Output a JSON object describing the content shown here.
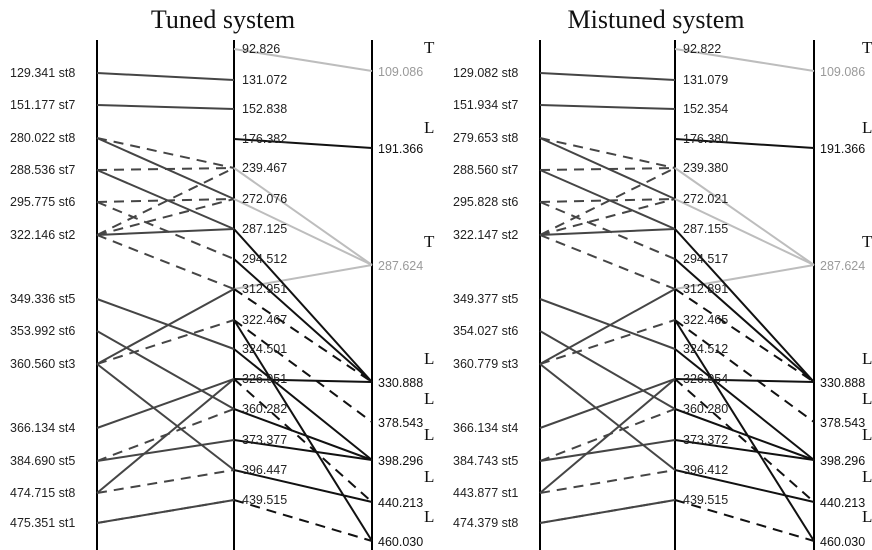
{
  "panels": [
    {
      "title": "Tuned system",
      "left": [
        {
          "value": "129.341",
          "id": "st8"
        },
        {
          "value": "151.177",
          "id": "st7"
        },
        {
          "value": "280.022",
          "id": "st8"
        },
        {
          "value": "288.536",
          "id": "st7"
        },
        {
          "value": "295.775",
          "id": "st6"
        },
        {
          "value": "322.146",
          "id": "st2"
        },
        {
          "value": "349.336",
          "id": "st5"
        },
        {
          "value": "353.992",
          "id": "st6"
        },
        {
          "value": "360.560",
          "id": "st3"
        },
        {
          "value": "366.134",
          "id": "st4"
        },
        {
          "value": "384.690",
          "id": "st5"
        },
        {
          "value": "474.715",
          "id": "st8"
        },
        {
          "value": "475.351",
          "id": "st1"
        }
      ],
      "middle": [
        "92.826",
        "131.072",
        "152.838",
        "176.382",
        "239.467",
        "272.076",
        "287.125",
        "294.512",
        "312.951",
        "322.467",
        "324.501",
        "326.951",
        "360.282",
        "373.377",
        "396.447",
        "439.515"
      ],
      "right": [
        {
          "value": "109.086",
          "mode": "T"
        },
        {
          "value": "191.366",
          "mode": "L"
        },
        {
          "value": "287.624",
          "mode": "T"
        },
        {
          "value": "330.888",
          "mode": "L"
        },
        {
          "value": "378.543",
          "mode": "L"
        },
        {
          "value": "398.296",
          "mode": "L"
        },
        {
          "value": "440.213",
          "mode": "L"
        },
        {
          "value": "460.030",
          "mode": "L"
        }
      ]
    },
    {
      "title": "Mistuned system",
      "left": [
        {
          "value": "129.082",
          "id": "st8"
        },
        {
          "value": "151.934",
          "id": "st7"
        },
        {
          "value": "279.653",
          "id": "st8"
        },
        {
          "value": "288.560",
          "id": "st7"
        },
        {
          "value": "295.828",
          "id": "st6"
        },
        {
          "value": "322.147",
          "id": "st2"
        },
        {
          "value": "349.377",
          "id": "st5"
        },
        {
          "value": "354.027",
          "id": "st6"
        },
        {
          "value": "360.779",
          "id": "st3"
        },
        {
          "value": "366.134",
          "id": "st4"
        },
        {
          "value": "384.743",
          "id": "st5"
        },
        {
          "value": "443.877",
          "id": "st1"
        },
        {
          "value": "474.379",
          "id": "st8"
        }
      ],
      "middle": [
        "92.822",
        "131.079",
        "152.354",
        "176.380",
        "239.380",
        "272.021",
        "287.155",
        "294.517",
        "312.891",
        "322.465",
        "324.512",
        "326.954",
        "360.280",
        "373.372",
        "396.412",
        "439.515"
      ],
      "right": [
        {
          "value": "109.086",
          "mode": "T"
        },
        {
          "value": "191.366",
          "mode": "L"
        },
        {
          "value": "287.624",
          "mode": "T"
        },
        {
          "value": "330.888",
          "mode": "L"
        },
        {
          "value": "378.543",
          "mode": "L"
        },
        {
          "value": "398.296",
          "mode": "L"
        },
        {
          "value": "440.213",
          "mode": "L"
        },
        {
          "value": "460.030",
          "mode": "L"
        }
      ]
    }
  ],
  "colors": {
    "axis": "#000000",
    "solid_connector": "#454545",
    "dashed_connector": "#454545",
    "strong_connector": "#111111",
    "torsion_connector": "#bdbdbd",
    "torsion_text": "#9a9a9a"
  }
}
